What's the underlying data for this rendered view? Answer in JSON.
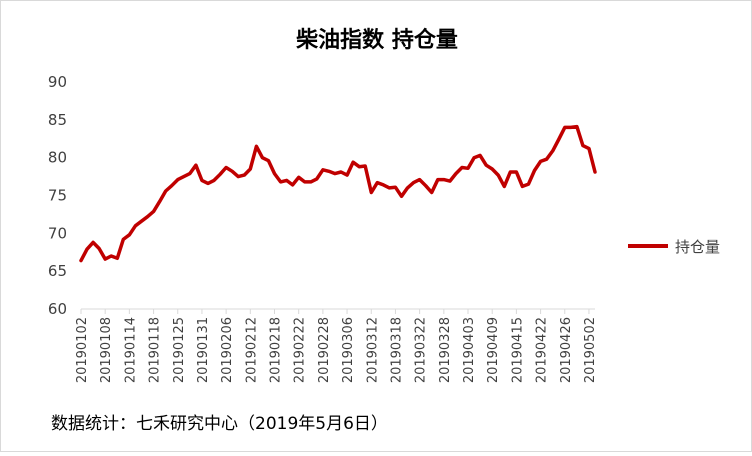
{
  "chart_data": {
    "type": "line",
    "title": "柴油指数 持仓量",
    "xlabel": "",
    "ylabel": "",
    "ylim": [
      60,
      90
    ],
    "yticks": [
      60,
      65,
      70,
      75,
      80,
      85,
      90
    ],
    "grid": false,
    "legend_position": "right",
    "x_tick_labels": [
      "20190102",
      "20190108",
      "20190114",
      "20190118",
      "20190125",
      "20190131",
      "20190206",
      "20190212",
      "20190218",
      "20190222",
      "20190228",
      "20190306",
      "20190312",
      "20190318",
      "20190322",
      "20190328",
      "20190403",
      "20190409",
      "20190415",
      "20190422",
      "20190426",
      "20190502"
    ],
    "series": [
      {
        "name": "持仓量",
        "color": "#c00000",
        "values": [
          66.4,
          67.9,
          68.8,
          68.0,
          66.6,
          67.0,
          66.7,
          69.2,
          69.8,
          71.0,
          71.6,
          72.2,
          72.9,
          74.2,
          75.6,
          76.3,
          77.1,
          77.5,
          77.9,
          79.0,
          77.0,
          76.6,
          77.0,
          77.8,
          78.7,
          78.2,
          77.5,
          77.7,
          78.5,
          81.5,
          80.0,
          79.6,
          77.9,
          76.8,
          77.0,
          76.4,
          77.4,
          76.8,
          76.8,
          77.2,
          78.4,
          78.2,
          77.9,
          78.1,
          77.7,
          79.4,
          78.8,
          78.9,
          75.4,
          76.7,
          76.4,
          76.0,
          76.1,
          74.9,
          76.0,
          76.7,
          77.1,
          76.3,
          75.4,
          77.1,
          77.1,
          76.9,
          77.9,
          78.7,
          78.6,
          80.0,
          80.3,
          79.0,
          78.5,
          77.7,
          76.2,
          78.1,
          78.1,
          76.2,
          76.5,
          78.3,
          79.5,
          79.8,
          80.9,
          82.4,
          84.0,
          84.0,
          84.1,
          81.6,
          81.2,
          78.1
        ]
      }
    ]
  },
  "footer": {
    "source_text": "数据统计：七禾研究中心（2019年5月6日）"
  }
}
